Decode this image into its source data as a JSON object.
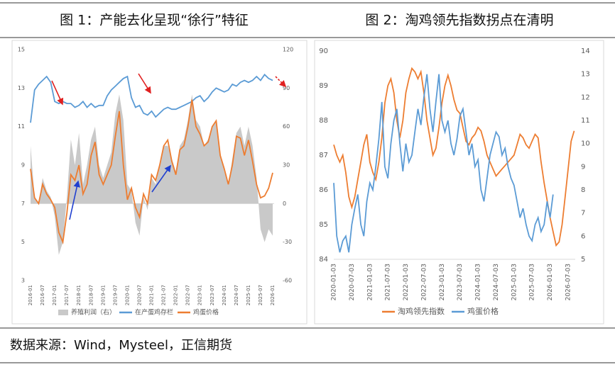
{
  "chart_data": [
    {
      "type": "line",
      "title": "图 1：产能去化呈现“徐行”特征",
      "categories": [
        "2016-01",
        null,
        null,
        "2016-07",
        null,
        null,
        "2017-01",
        null,
        null,
        "2017-07",
        null,
        null,
        "2018-01",
        null,
        null,
        "2018-07",
        null,
        null,
        "2019-01",
        null,
        null,
        "2019-07",
        null,
        null,
        "2020-01",
        null,
        null,
        "2020-07",
        null,
        null,
        "2021-01",
        null,
        null,
        "2021-07",
        null,
        null,
        "2022-01",
        null,
        null,
        "2022-07",
        null,
        null,
        "2023-01",
        null,
        null,
        "2023-07",
        null,
        null,
        "2024-01",
        null,
        null,
        "2024-07",
        null,
        null,
        "2025-01",
        null,
        null,
        "2025-07",
        null,
        null,
        "2026-01"
      ],
      "ylim": [
        3,
        15
      ],
      "yticks": [
        3,
        5,
        7,
        9,
        11,
        13,
        15
      ],
      "y2lim": [
        -60,
        120
      ],
      "y2ticks": [
        -60,
        -30,
        0,
        30,
        60,
        90,
        120
      ],
      "series": [
        {
          "name": "养殖利润（右）",
          "type": "area",
          "axis": "y2",
          "color": "#c9c9c9",
          "values": [
            45,
            5,
            0,
            20,
            10,
            5,
            -10,
            -40,
            -30,
            5,
            50,
            30,
            55,
            15,
            30,
            50,
            60,
            30,
            20,
            30,
            40,
            70,
            85,
            65,
            15,
            10,
            -15,
            -25,
            5,
            -5,
            20,
            15,
            30,
            45,
            45,
            35,
            25,
            45,
            50,
            65,
            85,
            65,
            60,
            45,
            50,
            60,
            65,
            40,
            25,
            15,
            35,
            55,
            60,
            45,
            60,
            45,
            20,
            -20,
            -30,
            -20,
            -25
          ]
        },
        {
          "name": "在产蛋鸡存栏",
          "color": "#5b9bd5",
          "values": [
            11.2,
            12.9,
            13.2,
            13.4,
            13.6,
            13.3,
            12.3,
            12.2,
            12.3,
            12.2,
            12.2,
            12.0,
            12.1,
            12.3,
            12.0,
            12.2,
            12.0,
            12.1,
            12.1,
            12.6,
            12.9,
            13.1,
            13.3,
            13.5,
            13.6,
            12.5,
            12.0,
            12.1,
            11.7,
            11.6,
            11.8,
            11.5,
            11.7,
            11.9,
            12.0,
            11.9,
            11.9,
            12.0,
            12.1,
            12.2,
            12.3,
            12.5,
            12.6,
            12.3,
            12.5,
            12.8,
            13.0,
            12.9,
            12.8,
            12.9,
            13.2,
            13.1,
            13.3,
            13.4,
            13.3,
            13.4,
            13.6,
            13.4,
            13.7,
            13.5,
            13.4
          ]
        },
        {
          "name": "鸡蛋价格",
          "color": "#ed7d31",
          "values": [
            8.8,
            7.3,
            7.0,
            8.0,
            7.5,
            7.2,
            6.8,
            5.5,
            5.0,
            6.5,
            8.5,
            8.2,
            9.0,
            7.5,
            8.0,
            9.5,
            10.2,
            8.5,
            8.0,
            8.5,
            9.0,
            10.5,
            11.8,
            9.0,
            7.2,
            7.8,
            6.8,
            6.3,
            7.5,
            7.0,
            8.5,
            8.2,
            9.0,
            10.0,
            10.3,
            9.2,
            8.5,
            9.8,
            10.0,
            11.0,
            12.4,
            11.0,
            10.6,
            10.0,
            10.2,
            11.0,
            11.3,
            9.5,
            8.8,
            8.0,
            9.0,
            10.5,
            10.4,
            9.5,
            10.3,
            9.2,
            8.0,
            7.3,
            7.4,
            7.8,
            8.6
          ]
        }
      ]
    },
    {
      "type": "line",
      "title": "图 2：淘鸡领先指数拐点在清明",
      "categories": [
        "2020-01-03",
        null,
        null,
        null,
        null,
        null,
        "2020-07-03",
        null,
        null,
        null,
        null,
        null,
        "2021-01-03",
        null,
        null,
        null,
        null,
        null,
        "2021-07-03",
        null,
        null,
        null,
        null,
        null,
        "2022-01-03",
        null,
        null,
        null,
        null,
        null,
        "2022-07-03",
        null,
        null,
        null,
        null,
        null,
        "2023-01-03",
        null,
        null,
        null,
        null,
        null,
        "2023-07-03",
        null,
        null,
        null,
        null,
        null,
        "2024-01-03",
        null,
        null,
        null,
        null,
        null,
        "2024-07-03",
        null,
        null,
        null,
        null,
        null,
        "2025-01-03",
        null,
        null,
        null,
        null,
        null,
        "2025-07-03",
        null,
        null,
        null,
        null,
        null,
        "2026-01-03",
        null,
        null,
        null,
        null,
        null,
        "2026-07-03",
        null,
        null
      ],
      "ylim": [
        84,
        90
      ],
      "yticks": [
        84,
        85,
        86,
        87,
        88,
        89,
        90
      ],
      "y2lim": [
        5,
        14
      ],
      "y2ticks": [
        5,
        6,
        7,
        8,
        9,
        10,
        11,
        12,
        13,
        14
      ],
      "series": [
        {
          "name": "淘鸡领先指数",
          "color": "#ed7d31",
          "values": [
            87.3,
            87.0,
            86.8,
            87.0,
            86.5,
            85.8,
            85.5,
            85.8,
            86.3,
            86.8,
            87.3,
            87.6,
            86.8,
            86.5,
            86.3,
            86.8,
            87.5,
            88.5,
            89.0,
            89.2,
            88.8,
            88.0,
            87.5,
            88.0,
            88.8,
            89.2,
            89.5,
            89.4,
            89.2,
            89.4,
            88.8,
            88.0,
            87.5,
            87.0,
            87.2,
            87.8,
            88.5,
            89.0,
            89.3,
            89.0,
            88.6,
            88.3,
            88.2,
            87.8,
            87.4,
            87.3,
            87.5,
            87.6,
            87.8,
            87.7,
            87.4,
            87.0,
            86.8,
            86.6,
            86.4,
            86.5,
            86.6,
            86.7,
            86.8,
            86.9,
            87.0,
            87.3,
            87.6,
            87.5,
            87.3,
            87.2,
            87.4,
            87.6,
            87.5,
            86.8,
            86.2,
            85.7,
            85.2,
            84.8,
            84.4,
            84.5,
            85.0,
            85.8,
            86.6,
            87.4,
            87.7
          ]
        },
        {
          "name": "鸡蛋价格",
          "axis": "y2",
          "color": "#5b9bd5",
          "values": [
            8.3,
            6.0,
            5.3,
            5.8,
            6.0,
            5.3,
            6.5,
            7.2,
            7.8,
            6.5,
            6.0,
            7.5,
            8.3,
            8.0,
            9.0,
            10.2,
            11.8,
            9.0,
            8.5,
            10.0,
            11.0,
            11.5,
            10.0,
            8.8,
            10.0,
            9.2,
            9.5,
            10.5,
            11.5,
            10.8,
            12.0,
            13.0,
            11.5,
            10.5,
            11.8,
            13.0,
            11.0,
            10.5,
            11.0,
            10.0,
            9.5,
            10.2,
            11.2,
            11.5,
            10.5,
            9.5,
            10.0,
            9.0,
            9.3,
            8.0,
            7.5,
            8.5,
            9.5,
            10.0,
            10.5,
            10.3,
            9.5,
            9.8,
            9.0,
            8.5,
            8.2,
            7.5,
            6.8,
            7.2,
            6.5,
            6.0,
            5.8,
            6.5,
            6.8,
            6.2,
            6.5,
            7.5,
            6.8,
            7.8,
            null,
            null,
            null,
            null,
            null,
            null,
            null
          ]
        }
      ]
    }
  ],
  "source": "数据来源：Wind，Mysteel，正信期货"
}
